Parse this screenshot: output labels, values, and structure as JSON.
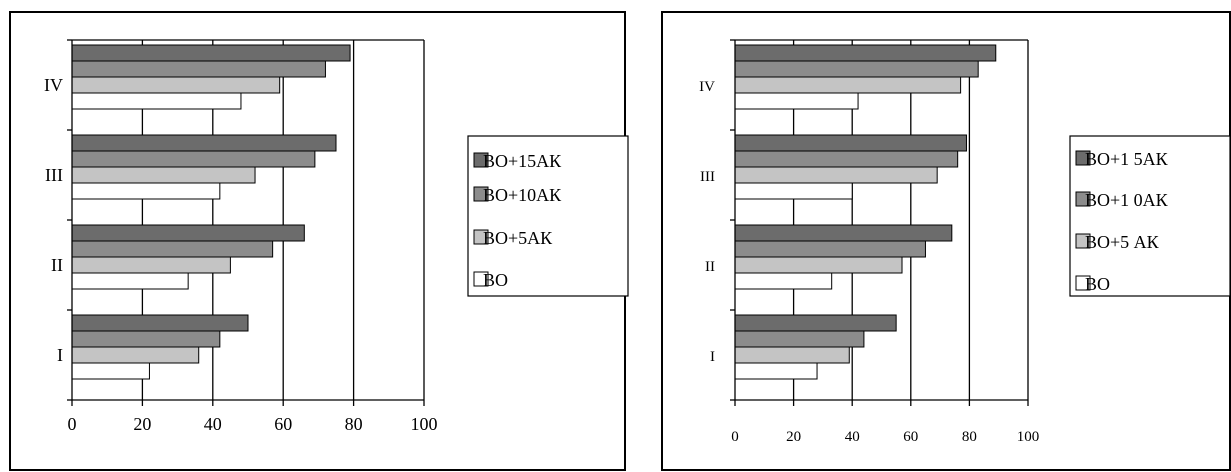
{
  "series_colors": [
    "#ffffff",
    "#c4c4c4",
    "#8c8c8c",
    "#6c6c6c"
  ],
  "chart_data": [
    {
      "type": "bar",
      "orientation": "horizontal",
      "categories": [
        "I",
        "II",
        "III",
        "IV"
      ],
      "series": [
        {
          "name": "ВО",
          "values": [
            22,
            33,
            42,
            48
          ]
        },
        {
          "name": "ВО+5АК",
          "values": [
            36,
            45,
            52,
            59
          ]
        },
        {
          "name": "ВО+10АК",
          "values": [
            42,
            57,
            69,
            72
          ]
        },
        {
          "name": "ВО+15АК",
          "values": [
            50,
            66,
            75,
            79
          ]
        }
      ],
      "xlim": [
        0,
        100
      ],
      "xticks": [
        "0",
        "20",
        "40",
        "60",
        "80",
        "100"
      ],
      "grid": true,
      "legend_position": "right"
    },
    {
      "type": "bar",
      "orientation": "horizontal",
      "categories": [
        "I",
        "II",
        "III",
        "IV"
      ],
      "series": [
        {
          "name": "ВО",
          "values": [
            28,
            33,
            40,
            42
          ]
        },
        {
          "name": "ВО+5АК",
          "values": [
            39,
            57,
            69,
            77
          ]
        },
        {
          "name": "ВО+10АК",
          "values": [
            44,
            65,
            76,
            83
          ]
        },
        {
          "name": "ВО+15АК",
          "values": [
            55,
            74,
            79,
            89
          ]
        }
      ],
      "xlim": [
        0,
        100
      ],
      "xticks": [
        "0",
        "20",
        "40",
        "60",
        "80",
        "100"
      ],
      "grid": true,
      "legend_position": "right",
      "legend_labels": [
        "ВО+1 5АК",
        "ВО+1 0АК",
        "ВО+5 АК",
        "ВО"
      ]
    }
  ]
}
